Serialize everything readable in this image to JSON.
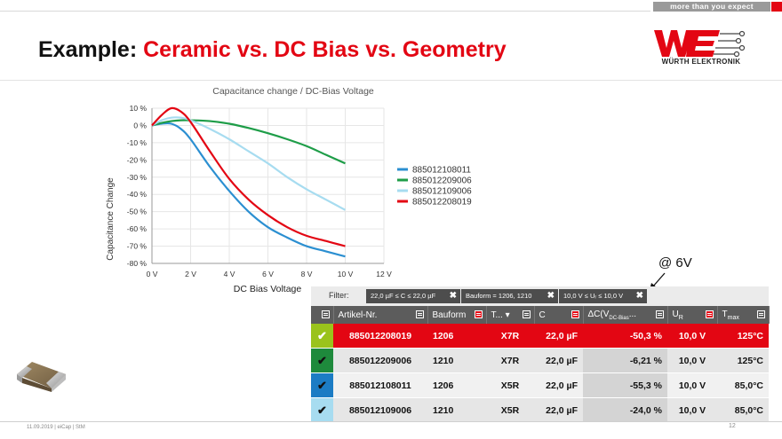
{
  "header": {
    "tagline": "more than you expect",
    "brand_text": "WÜRTH ELEKTRONIK"
  },
  "title": {
    "part1": "Example: ",
    "part2": "Ceramic vs. DC Bias vs. Geometry"
  },
  "colors": {
    "accent": "#e30613",
    "blue": "#2b8fd1",
    "green": "#1e9d48",
    "lightblue": "#a7dcf0",
    "red": "#e30613",
    "table_header": "#5c5c5c"
  },
  "chart_data": {
    "type": "line",
    "title": "Capacitance change / DC-Bias Voltage",
    "xlabel": "DC Bias Voltage",
    "ylabel": "Capacitance Change",
    "xlim": [
      0,
      12
    ],
    "ylim": [
      -80,
      10
    ],
    "x_ticks": [
      "0 V",
      "2 V",
      "4 V",
      "6 V",
      "8 V",
      "10 V",
      "12 V"
    ],
    "y_ticks": [
      "10 %",
      "0 %",
      "-10 %",
      "-20 %",
      "-30 %",
      "-40 %",
      "-50 %",
      "-60 %",
      "-70 %",
      "-80 %"
    ],
    "grid": true,
    "legend": "right",
    "x": [
      0,
      0.5,
      1,
      1.5,
      2,
      3,
      4,
      5,
      6,
      7,
      8,
      9,
      10
    ],
    "series": [
      {
        "name": "885012108011",
        "color": "#2b8fd1",
        "values": [
          0,
          1,
          1,
          -2,
          -8,
          -24,
          -38,
          -50,
          -59,
          -65,
          -70,
          -73,
          -76
        ]
      },
      {
        "name": "885012209006",
        "color": "#1e9d48",
        "values": [
          0,
          1.5,
          2.5,
          3,
          3,
          2.5,
          1,
          -1.5,
          -4.5,
          -8,
          -12,
          -17,
          -22
        ]
      },
      {
        "name": "885012109006",
        "color": "#a7dcf0",
        "values": [
          0,
          3,
          4.5,
          4.5,
          3,
          -2,
          -8,
          -15,
          -22,
          -30,
          -37,
          -43,
          -49
        ]
      },
      {
        "name": "885012208019",
        "color": "#e30613",
        "values": [
          0,
          6,
          10,
          8,
          2,
          -15,
          -31,
          -43,
          -52,
          -59,
          -64,
          -67,
          -70
        ]
      }
    ]
  },
  "annotation": "@ 6V",
  "filter": {
    "label": "Filter:",
    "chips": [
      "22,0 µF ≤ C ≤ 22,0 µF",
      "Bauform = 1206, 1210",
      "10,0 V ≤ Uᵣ ≤ 10,0 V"
    ],
    "close_glyph": "✖"
  },
  "table": {
    "headers": [
      "",
      "Artikel-Nr.",
      "Bauform",
      "T... ▾",
      "C",
      "ΔC(V",
      "UR",
      "Tmax"
    ],
    "delta_sub": "DC-Bias",
    "delta_tail": "...",
    "ur_main": "U",
    "ur_sub": "R",
    "tmax_main": "T",
    "tmax_sub": "max",
    "rows": [
      {
        "check": "✔",
        "check_color": "#9ac31c",
        "artikel": "885012208019",
        "bauform": "1206",
        "type": "X7R",
        "c": "22,0 µF",
        "delta": "-50,3 %",
        "ur": "10,0 V",
        "tmax": "125°C"
      },
      {
        "check": "✔",
        "check_color": "#1e8a3c",
        "artikel": "885012209006",
        "bauform": "1210",
        "type": "X7R",
        "c": "22,0 µF",
        "delta": "-6,21 %",
        "ur": "10,0 V",
        "tmax": "125°C"
      },
      {
        "check": "✔",
        "check_color": "#1c7cc4",
        "artikel": "885012108011",
        "bauform": "1206",
        "type": "X5R",
        "c": "22,0 µF",
        "delta": "-55,3 %",
        "ur": "10,0 V",
        "tmax": "85,0°C"
      },
      {
        "check": "✔",
        "check_color": "#a7dcf0",
        "artikel": "885012109006",
        "bauform": "1210",
        "type": "X5R",
        "c": "22,0 µF",
        "delta": "-24,0 %",
        "ur": "10,0 V",
        "tmax": "85,0°C"
      }
    ]
  },
  "footer": {
    "left": "11.09.2019  |  eiCap  |  StM",
    "page": "12"
  }
}
